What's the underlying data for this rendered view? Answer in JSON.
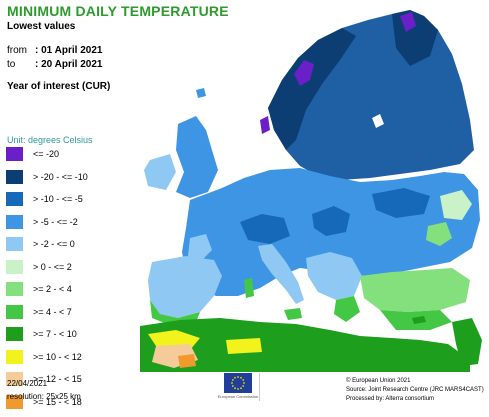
{
  "header": {
    "title": "MINIMUM DAILY TEMPERATURE",
    "subtitle": "Lowest values",
    "from_label": "from",
    "from_value": ": 01 April 2021",
    "to_label": "to",
    "to_value": ": 20 April 2021",
    "year_of_interest": "Year of interest (CUR)"
  },
  "legend": {
    "unit": "Unit: degrees Celsius",
    "items": [
      {
        "label": "<= -20",
        "color": "#6a1fc9"
      },
      {
        "label": "> -20 - <= -10",
        "color": "#0c3e73"
      },
      {
        "label": "> -10 - <= -5",
        "color": "#1668b8"
      },
      {
        "label": "> -5 - <= -2",
        "color": "#3e95e4"
      },
      {
        "label": "> -2 - <= 0",
        "color": "#8fc8f2"
      },
      {
        "label": "> 0 - <= 2",
        "color": "#c9f2c9"
      },
      {
        "label": ">= 2 - < 4",
        "color": "#84e07c"
      },
      {
        "label": ">= 4 - < 7",
        "color": "#44c744"
      },
      {
        "label": ">= 7 - < 10",
        "color": "#1d9e1d"
      },
      {
        "label": ">= 10 - < 12",
        "color": "#f2f21d"
      },
      {
        "label": ">= 12 - < 15",
        "color": "#f5cc99"
      },
      {
        "label": ">= 15 - < 18",
        "color": "#f09a2e"
      }
    ]
  },
  "footer": {
    "date": "22/04/2021",
    "resolution": "resolution: 25x25 km",
    "eu_caption": "European Commission",
    "credit_1": "© European Union 2021",
    "credit_2": "Source: Joint Research Centre (JRC MARS4CAST)",
    "credit_3": "Processed by: Alterra consortium"
  }
}
